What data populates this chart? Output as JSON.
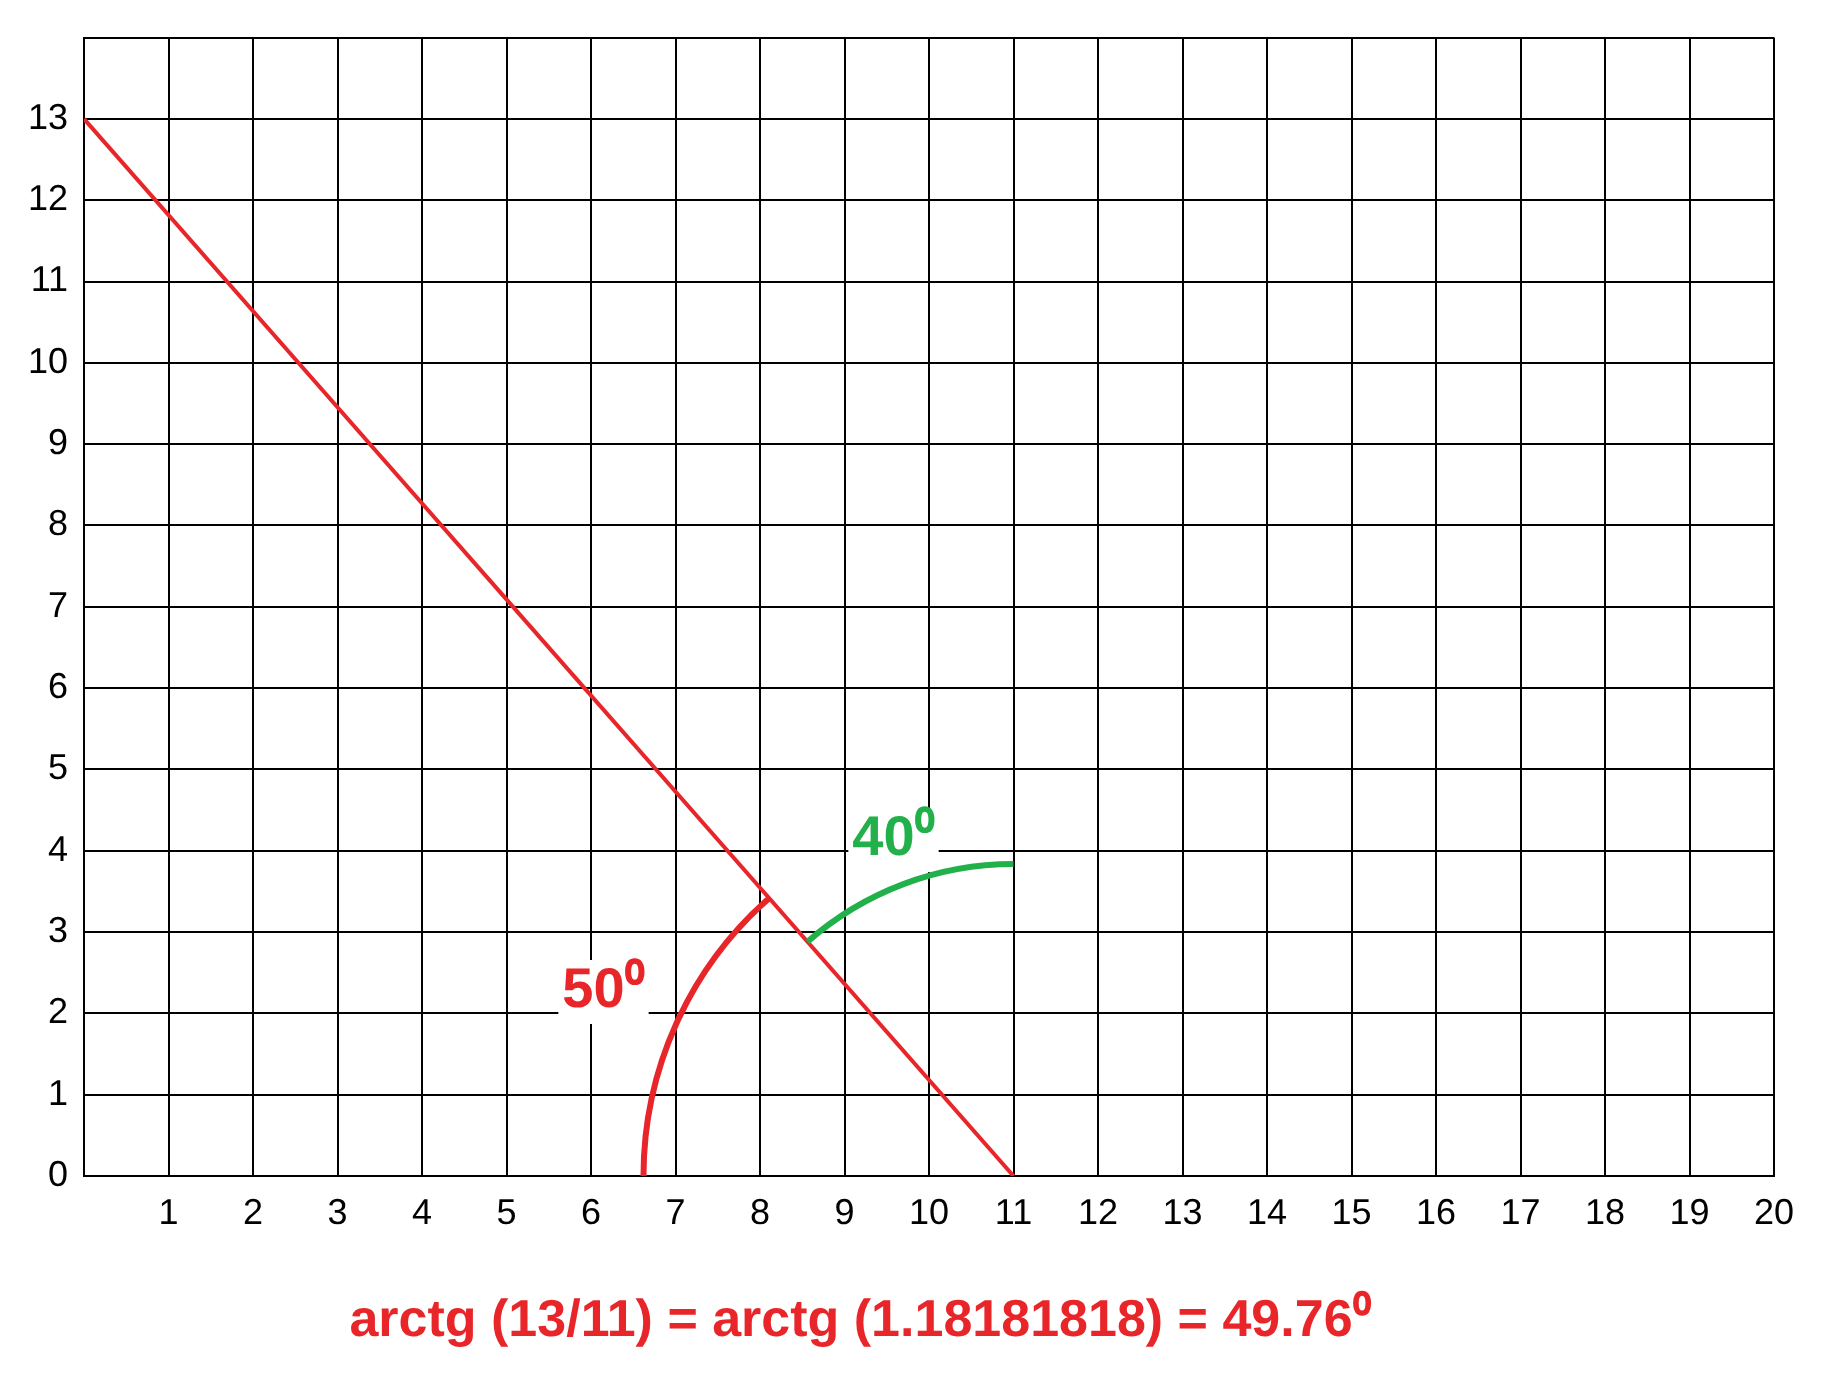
{
  "chart_data": {
    "type": "line",
    "series": [
      {
        "color": "#e8262a",
        "x": [
          0,
          11
        ],
        "values": [
          13,
          0
        ]
      }
    ],
    "xlim": [
      0,
      20
    ],
    "xticks": [
      {
        "value": 0,
        "label": null
      },
      1,
      2,
      3,
      4,
      5,
      6,
      7,
      8,
      9,
      10,
      11,
      12,
      13,
      14,
      15,
      16,
      17,
      18,
      19,
      20
    ],
    "ylim": [
      0,
      14
    ],
    "yticks": [
      0,
      1,
      2,
      3,
      4,
      5,
      6,
      7,
      8,
      9,
      10,
      11,
      12,
      13,
      {
        "value": 14,
        "label": null
      }
    ],
    "grid": true,
    "legend": false,
    "marker": "none",
    "line_style": "solid",
    "annotations": [
      "50⁰",
      "40⁰",
      "arctg (13/11) = arctg (1.18181818) = 49.76⁰"
    ]
  }
}
